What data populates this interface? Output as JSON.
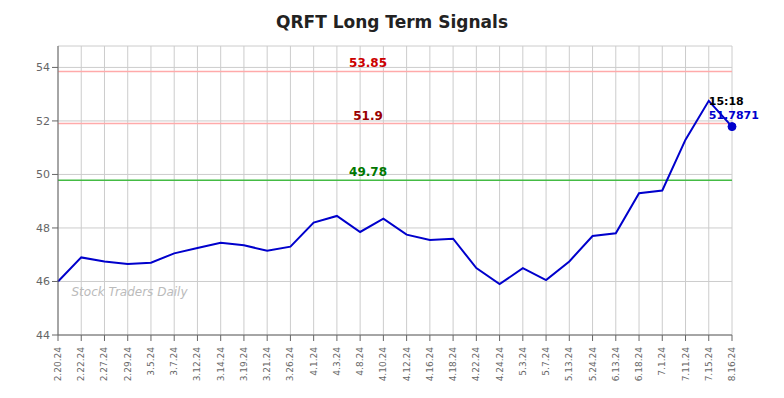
{
  "chart_data": {
    "type": "line",
    "title": "QRFT Long Term Signals",
    "categories": [
      "2.20.24",
      "2.22.24",
      "2.27.24",
      "2.29.24",
      "3.5.24",
      "3.7.24",
      "3.12.24",
      "3.14.24",
      "3.19.24",
      "3.21.24",
      "3.26.24",
      "4.1.24",
      "4.3.24",
      "4.8.24",
      "4.10.24",
      "4.12.24",
      "4.16.24",
      "4.18.24",
      "4.22.24",
      "4.24.24",
      "5.3.24",
      "5.7.24",
      "5.13.24",
      "5.24.24",
      "6.13.24",
      "6.18.24",
      "7.1.24",
      "7.11.24",
      "7.15.24",
      "8.16.24"
    ],
    "values": [
      46.0,
      46.9,
      46.75,
      46.65,
      46.7,
      47.05,
      47.25,
      47.45,
      47.35,
      47.15,
      47.3,
      48.2,
      48.45,
      47.85,
      48.35,
      47.75,
      47.55,
      47.6,
      46.5,
      45.9,
      46.5,
      46.05,
      46.75,
      47.7,
      47.8,
      49.3,
      49.4,
      51.3,
      52.75,
      51.7871
    ],
    "color": "#0000cc",
    "ylim": [
      44,
      54.8
    ],
    "yticks": [
      44,
      46,
      48,
      50,
      52,
      54
    ],
    "grid": true,
    "hlines": [
      {
        "y": 53.85,
        "label": "53.85",
        "color": "#ffaaaa",
        "label_color": "#cc0000"
      },
      {
        "y": 51.9,
        "label": "51.9",
        "color": "#ffaaaa",
        "label_color": "#990000"
      },
      {
        "y": 49.78,
        "label": "49.78",
        "color": "#44bb44",
        "label_color": "#007700"
      }
    ],
    "last_time": "15:18",
    "watermark": "Stock Traders Daily"
  }
}
